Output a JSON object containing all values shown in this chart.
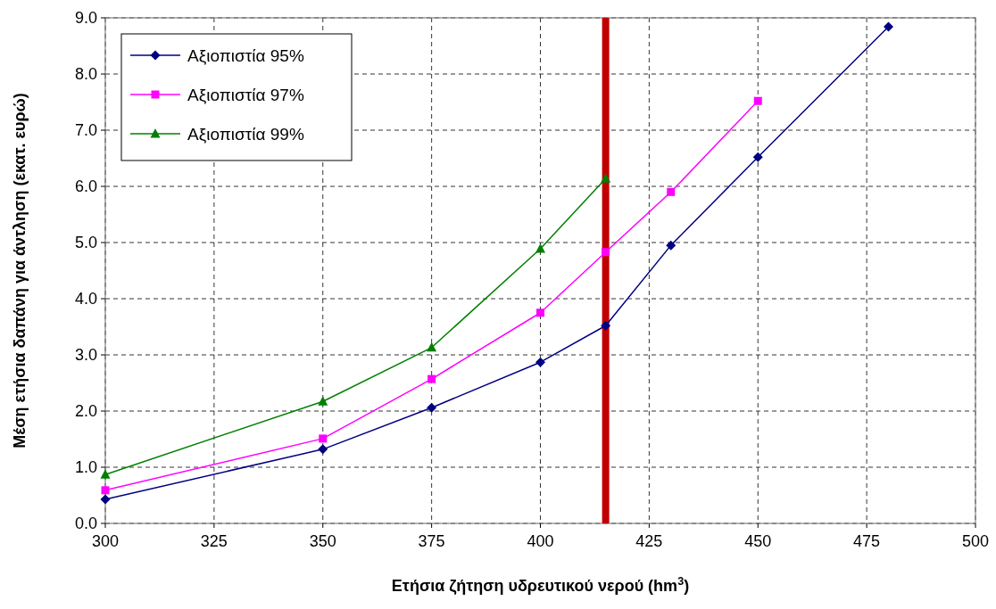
{
  "chart_data": {
    "type": "line",
    "xlabel": "Ετήσια ζήτηση υδρευτικού νερού (hm$^{3}$)",
    "ylabel": "Μέση ετήσια δαπάνη για άντληση (εκατ. ευρώ)",
    "xlim": [
      300,
      500
    ],
    "xticks": [
      300,
      325,
      350,
      375,
      400,
      425,
      450,
      475,
      500
    ],
    "ylim": [
      0,
      9
    ],
    "yticks": [
      {
        "value": 0,
        "label": "0.0"
      },
      {
        "value": 1,
        "label": "1.0"
      },
      {
        "value": 2,
        "label": "2.0"
      },
      {
        "value": 3,
        "label": "3.0"
      },
      {
        "value": 4,
        "label": "4.0"
      },
      {
        "value": 5,
        "label": "5.0"
      },
      {
        "value": 6,
        "label": "6.0"
      },
      {
        "value": 7,
        "label": "7.0"
      },
      {
        "value": 8,
        "label": "8.0"
      },
      {
        "value": 9,
        "label": "9.0"
      }
    ],
    "grid": true,
    "legend": "top left",
    "line_style": "solid",
    "series": [
      {
        "name": "Αξιοπιστία 95%",
        "color": "#000080",
        "marker": "diamond",
        "x": [
          300,
          350,
          375,
          400,
          415,
          430,
          450,
          480
        ],
        "values": [
          0.43,
          1.32,
          2.06,
          2.87,
          3.52,
          4.95,
          6.52,
          8.84
        ]
      },
      {
        "name": "Αξιοπιστία 97%",
        "color": "#ff00ff",
        "marker": "square",
        "x": [
          300,
          350,
          375,
          400,
          415,
          430,
          450
        ],
        "values": [
          0.59,
          1.51,
          2.57,
          3.75,
          4.83,
          5.9,
          7.52
        ]
      },
      {
        "name": "Αξιοπιστία 99%",
        "color": "#008000",
        "marker": "triangle",
        "x": [
          300,
          350,
          375,
          400,
          415
        ],
        "values": [
          0.87,
          2.17,
          3.13,
          4.89,
          6.14
        ]
      }
    ],
    "ref_lines": [
      {
        "axis": "x",
        "value": 415,
        "color": "#c00000",
        "line_style": "solid"
      }
    ]
  }
}
